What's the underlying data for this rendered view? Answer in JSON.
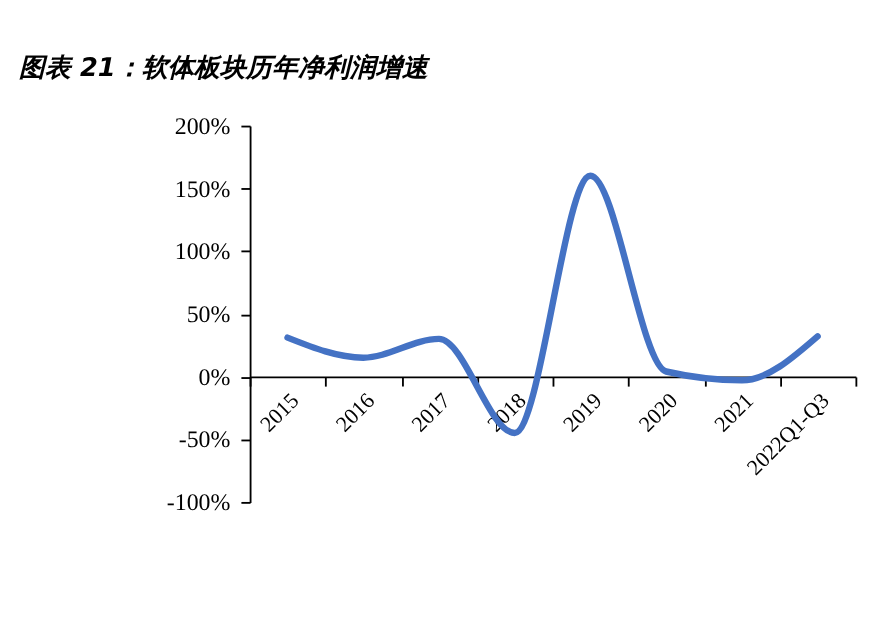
{
  "chart_data": {
    "type": "line",
    "title": "图表 21：软体板块历年净利润增速",
    "categories": [
      "2015",
      "2016",
      "2017",
      "2018",
      "2019",
      "2020",
      "2021",
      "2022Q1-Q3"
    ],
    "series": [
      {
        "color": "#4472c4",
        "values": [
          31,
          15,
          30,
          -45,
          160,
          4,
          -3,
          32
        ]
      }
    ],
    "ylim": [
      -100,
      200
    ],
    "yticks": [
      {
        "value": -100,
        "label": "-100%"
      },
      {
        "value": -50,
        "label": "-50%"
      },
      {
        "value": 0,
        "label": "0%"
      },
      {
        "value": 50,
        "label": "50%"
      },
      {
        "value": 100,
        "label": "100%"
      },
      {
        "value": 150,
        "label": "150%"
      },
      {
        "value": 200,
        "label": "200%"
      }
    ],
    "grid": false,
    "marker": "none",
    "line_style": "solid"
  }
}
